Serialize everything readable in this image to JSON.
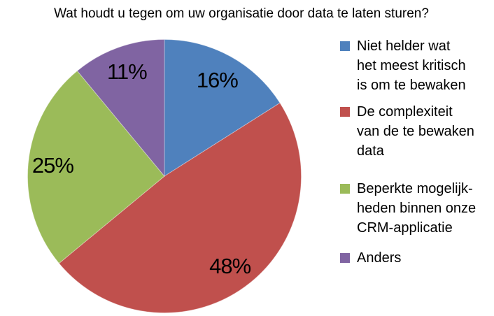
{
  "title": "Wat houdt u tegen om uw organisatie door data te laten sturen?",
  "chart_data": {
    "type": "pie",
    "title": "Wat houdt u tegen om uw organisatie door data te laten sturen?",
    "start_angle_deg": 0,
    "direction": "clockwise",
    "legend_position": "right",
    "slices": [
      {
        "label": "Niet helder wat het meest kritisch is om te bewaken",
        "value": 16,
        "data_label": "16%",
        "color": "#4F81BD",
        "label_radius_fraction": 0.8
      },
      {
        "label": "De complexiteit van de te bewaken data",
        "value": 48,
        "data_label": "48%",
        "color": "#C0504D",
        "label_radius_fraction": 0.815
      },
      {
        "label": "Beperkte mogelijkheden binnen onze CRM-applicatie",
        "value": 25,
        "data_label": "25%",
        "color": "#9BBB59",
        "label_radius_fraction": 0.82
      },
      {
        "label": "Anders",
        "value": 11,
        "data_label": "11%",
        "color": "#8064A2",
        "label_radius_fraction": 0.81
      }
    ]
  },
  "legend": {
    "items": [
      {
        "lines": [
          "Niet helder wat",
          "het meest kritisch",
          "is om te bewaken"
        ],
        "color": "#4F81BD"
      },
      {
        "lines": [
          "De complexiteit",
          "van de te bewaken",
          "data"
        ],
        "color": "#C0504D"
      },
      {
        "lines": [
          "Beperkte mogelijk-",
          "heden binnen onze",
          "CRM-applicatie"
        ],
        "color": "#9BBB59"
      },
      {
        "lines": [
          "Anders"
        ],
        "color": "#8064A2"
      }
    ]
  },
  "colors": {
    "blue": "#4F81BD",
    "red": "#C0504D",
    "green": "#9BBB59",
    "purple": "#8064A2",
    "background": "#FFFFFF",
    "text": "#000000"
  }
}
